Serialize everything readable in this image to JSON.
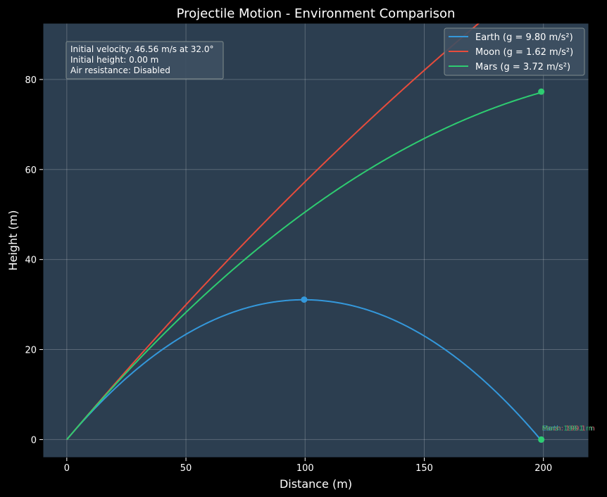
{
  "chart_data": {
    "type": "line",
    "title": "Projectile Motion - Environment Comparison",
    "xlabel": "Distance (m)",
    "ylabel": "Height (m)",
    "xlim": [
      -10,
      219
    ],
    "ylim": [
      -4,
      92.5
    ],
    "xticks": [
      0,
      50,
      100,
      150,
      200
    ],
    "yticks": [
      0,
      20,
      40,
      60,
      80
    ],
    "grid": true,
    "legend_position": "top-right",
    "initial_velocity": 46.56,
    "launch_angle_deg": 32.0,
    "initial_height": 0.0,
    "series": [
      {
        "name": "Earth (g = 9.80 m/s²)",
        "g": 9.8,
        "color": "#3498db"
      },
      {
        "name": "Moon (g = 1.62 m/s²)",
        "g": 1.62,
        "color": "#e74c3c"
      },
      {
        "name": "Mars (g = 3.72 m/s²)",
        "g": 3.72,
        "color": "#2ecc71"
      }
    ],
    "x_cutoff": 199.1,
    "markers": [
      {
        "series": "Earth",
        "x": 99.6,
        "y": 31.1,
        "color": "#3498db"
      },
      {
        "series": "Earth",
        "x": 199.1,
        "y": 0,
        "color": "#3498db"
      },
      {
        "series": "Mars",
        "x": 199.1,
        "y": 77.3,
        "color": "#2ecc71"
      },
      {
        "series": "Mars",
        "x": 199.1,
        "y": 0,
        "color": "#2ecc71"
      }
    ],
    "annotations": [
      {
        "text": "Earth: 199.1 m",
        "x": 199.1,
        "y": 0,
        "color": "#3498db"
      },
      {
        "text": "Moon: 199.1 m",
        "x": 199.1,
        "y": 0,
        "color": "#e74c3c"
      },
      {
        "text": "Mars: 199.1 m",
        "x": 199.1,
        "y": 0,
        "color": "#2ecc71"
      }
    ],
    "info_box": {
      "line1": "Initial velocity: 46.56 m/s at 32.0°",
      "line2": "Initial height: 0.00 m",
      "line3": "Air resistance: Disabled"
    }
  }
}
